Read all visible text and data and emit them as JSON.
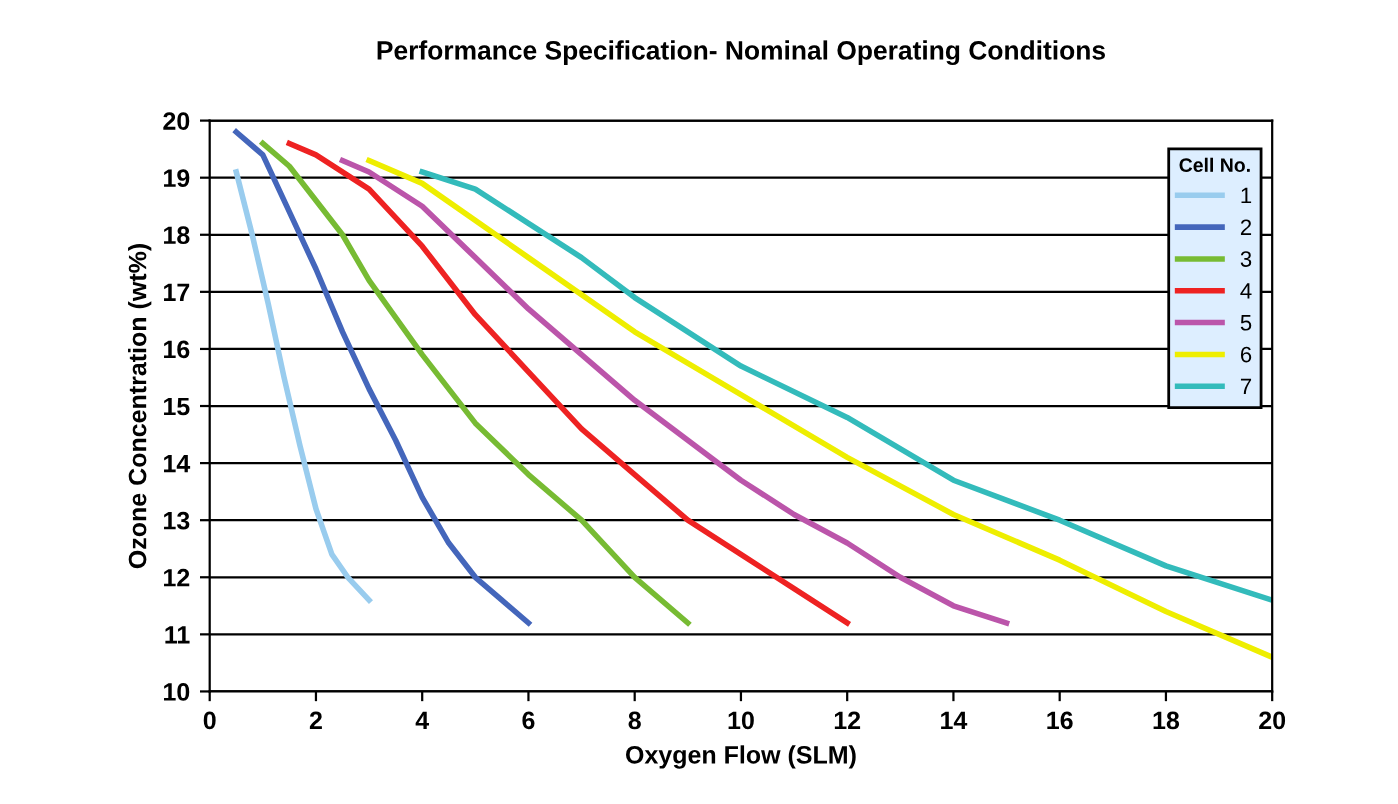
{
  "chart_data": {
    "type": "line",
    "title": "Performance Specification- Nominal Operating Conditions",
    "xlabel": "Oxygen Flow (SLM)",
    "ylabel": "Ozone Concentration (wt%)",
    "legend_title": "Cell No.",
    "legend": "top right",
    "grid": "y",
    "marker": "none",
    "line_style": "solid",
    "xlim": [
      0,
      20
    ],
    "xticks": [
      0,
      2,
      4,
      6,
      8,
      10,
      12,
      14,
      16,
      18,
      20
    ],
    "ylim": [
      10,
      20
    ],
    "yticks": [
      10,
      11,
      12,
      13,
      14,
      15,
      16,
      17,
      18,
      19,
      20
    ],
    "series": [
      {
        "name": "1",
        "color": "#99ccee",
        "x": [
          0.5,
          0.8,
          1.1,
          1.4,
          1.7,
          2.0,
          2.3,
          2.6,
          3.0
        ],
        "values": [
          19.1,
          18.0,
          16.8,
          15.5,
          14.3,
          13.2,
          12.4,
          12.0,
          11.6
        ]
      },
      {
        "name": "2",
        "color": "#4466bb",
        "x": [
          0.5,
          1,
          1.5,
          2,
          2.5,
          3,
          3.5,
          4,
          4.5,
          5,
          5.5,
          6
        ],
        "values": [
          19.8,
          19.4,
          18.4,
          17.4,
          16.3,
          15.3,
          14.4,
          13.4,
          12.6,
          12.0,
          11.6,
          11.2
        ]
      },
      {
        "name": "3",
        "color": "#77bb33",
        "x": [
          1,
          1.5,
          2,
          2.5,
          3,
          4,
          5,
          6,
          7,
          8,
          9
        ],
        "values": [
          19.6,
          19.2,
          18.6,
          18.0,
          17.2,
          15.9,
          14.7,
          13.8,
          13.0,
          12.0,
          11.2
        ]
      },
      {
        "name": "4",
        "color": "#ee2222",
        "x": [
          1.5,
          2,
          3,
          4,
          5,
          6,
          7,
          8,
          9,
          10,
          11,
          12
        ],
        "values": [
          19.6,
          19.4,
          18.8,
          17.8,
          16.6,
          15.6,
          14.6,
          13.8,
          13.0,
          12.4,
          11.8,
          11.2
        ]
      },
      {
        "name": "5",
        "color": "#bb55aa",
        "x": [
          2.5,
          3,
          4,
          5,
          6,
          7,
          8,
          9,
          10,
          11,
          12,
          13,
          14,
          15
        ],
        "values": [
          19.3,
          19.1,
          18.5,
          17.6,
          16.7,
          15.9,
          15.1,
          14.4,
          13.7,
          13.1,
          12.6,
          12.0,
          11.5,
          11.2
        ]
      },
      {
        "name": "6",
        "color": "#eeee00",
        "x": [
          3,
          4,
          6,
          8,
          10,
          12,
          14,
          16,
          18,
          20
        ],
        "values": [
          19.3,
          18.9,
          17.6,
          16.3,
          15.2,
          14.1,
          13.1,
          12.3,
          11.4,
          10.6
        ]
      },
      {
        "name": "7",
        "color": "#33bbbb",
        "x": [
          4,
          5,
          6,
          7,
          8,
          10,
          12,
          14,
          16,
          18,
          20
        ],
        "values": [
          19.1,
          18.8,
          18.2,
          17.6,
          16.9,
          15.7,
          14.8,
          13.7,
          13.0,
          12.2,
          11.6
        ]
      }
    ]
  }
}
